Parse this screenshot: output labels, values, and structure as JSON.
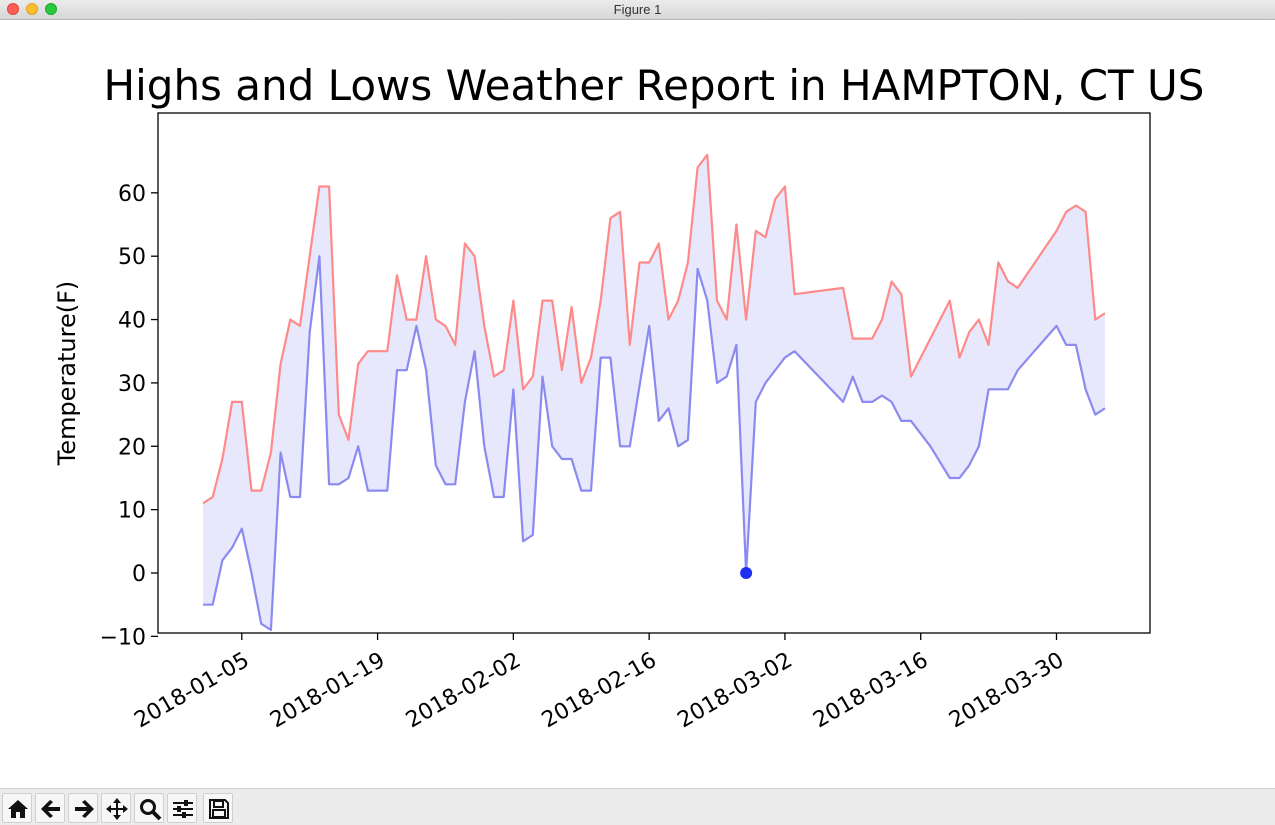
{
  "window": {
    "title": "Figure 1"
  },
  "chart_data": {
    "type": "line",
    "title": "Highs and Lows Weather Report in HAMPTON, CT US",
    "xlabel": "",
    "ylabel": "Temperature(F)",
    "xlim": [
      "2018-01-01",
      "2018-04-05"
    ],
    "ylim": [
      -12.3,
      70.0
    ],
    "x_ticks": [
      "2018-01-05",
      "2018-01-19",
      "2018-02-02",
      "2018-02-16",
      "2018-03-02",
      "2018-03-16",
      "2018-03-30"
    ],
    "y_ticks": [
      -10,
      0,
      10,
      20,
      30,
      40,
      50,
      60
    ],
    "grid": false,
    "fill_between": true,
    "colors": {
      "high": "#ff8a8a",
      "low": "#8a8af0",
      "fill": "#e8e8fc",
      "marker": "#1f2ff0"
    },
    "series": [
      {
        "key": "high",
        "points": [
          [
            "2018-01-01",
            11
          ],
          [
            "2018-01-02",
            12
          ],
          [
            "2018-01-03",
            18
          ],
          [
            "2018-01-04",
            27
          ],
          [
            "2018-01-05",
            27
          ],
          [
            "2018-01-06",
            13
          ],
          [
            "2018-01-07",
            13
          ],
          [
            "2018-01-08",
            19
          ],
          [
            "2018-01-09",
            33
          ],
          [
            "2018-01-10",
            40
          ],
          [
            "2018-01-11",
            39
          ],
          [
            "2018-01-12",
            50
          ],
          [
            "2018-01-13",
            61
          ],
          [
            "2018-01-14",
            61
          ],
          [
            "2018-01-15",
            25
          ],
          [
            "2018-01-16",
            21
          ],
          [
            "2018-01-17",
            33
          ],
          [
            "2018-01-18",
            35
          ],
          [
            "2018-01-19",
            35
          ],
          [
            "2018-01-20",
            35
          ],
          [
            "2018-01-21",
            47
          ],
          [
            "2018-01-22",
            40
          ],
          [
            "2018-01-23",
            40
          ],
          [
            "2018-01-24",
            50
          ],
          [
            "2018-01-25",
            40
          ],
          [
            "2018-01-26",
            39
          ],
          [
            "2018-01-27",
            36
          ],
          [
            "2018-01-28",
            52
          ],
          [
            "2018-01-29",
            50
          ],
          [
            "2018-01-30",
            39
          ],
          [
            "2018-01-31",
            31
          ],
          [
            "2018-02-01",
            32
          ],
          [
            "2018-02-02",
            43
          ],
          [
            "2018-02-03",
            29
          ],
          [
            "2018-02-04",
            31
          ],
          [
            "2018-02-05",
            43
          ],
          [
            "2018-02-06",
            43
          ],
          [
            "2018-02-07",
            32
          ],
          [
            "2018-02-08",
            42
          ],
          [
            "2018-02-09",
            30
          ],
          [
            "2018-02-10",
            34
          ],
          [
            "2018-02-11",
            43
          ],
          [
            "2018-02-12",
            56
          ],
          [
            "2018-02-13",
            57
          ],
          [
            "2018-02-14",
            36
          ],
          [
            "2018-02-15",
            49
          ],
          [
            "2018-02-16",
            49
          ],
          [
            "2018-02-17",
            52
          ],
          [
            "2018-02-18",
            40
          ],
          [
            "2018-02-19",
            43
          ],
          [
            "2018-02-20",
            49
          ],
          [
            "2018-02-21",
            64
          ],
          [
            "2018-02-22",
            66
          ],
          [
            "2018-02-23",
            43
          ],
          [
            "2018-02-24",
            40
          ],
          [
            "2018-02-25",
            55
          ],
          [
            "2018-02-26",
            40
          ],
          [
            "2018-02-27",
            54
          ],
          [
            "2018-02-28",
            53
          ],
          [
            "2018-03-01",
            59
          ],
          [
            "2018-03-02",
            61
          ],
          [
            "2018-03-03",
            44
          ],
          [
            "2018-03-08",
            45
          ],
          [
            "2018-03-09",
            37
          ],
          [
            "2018-03-10",
            37
          ],
          [
            "2018-03-11",
            37
          ],
          [
            "2018-03-12",
            40
          ],
          [
            "2018-03-13",
            46
          ],
          [
            "2018-03-14",
            44
          ],
          [
            "2018-03-15",
            31
          ],
          [
            "2018-03-17",
            37
          ],
          [
            "2018-03-18",
            40
          ],
          [
            "2018-03-19",
            43
          ],
          [
            "2018-03-20",
            34
          ],
          [
            "2018-03-21",
            38
          ],
          [
            "2018-03-22",
            40
          ],
          [
            "2018-03-23",
            36
          ],
          [
            "2018-03-24",
            49
          ],
          [
            "2018-03-25",
            46
          ],
          [
            "2018-03-26",
            45
          ],
          [
            "2018-03-30",
            54
          ],
          [
            "2018-03-31",
            57
          ],
          [
            "2018-04-01",
            58
          ],
          [
            "2018-04-02",
            57
          ],
          [
            "2018-04-03",
            40
          ],
          [
            "2018-04-04",
            41
          ]
        ]
      },
      {
        "key": "low",
        "points": [
          [
            "2018-01-01",
            -5
          ],
          [
            "2018-01-02",
            -5
          ],
          [
            "2018-01-03",
            2
          ],
          [
            "2018-01-04",
            4
          ],
          [
            "2018-01-05",
            7
          ],
          [
            "2018-01-06",
            0
          ],
          [
            "2018-01-07",
            -8
          ],
          [
            "2018-01-08",
            -9
          ],
          [
            "2018-01-09",
            19
          ],
          [
            "2018-01-10",
            12
          ],
          [
            "2018-01-11",
            12
          ],
          [
            "2018-01-12",
            38
          ],
          [
            "2018-01-13",
            50
          ],
          [
            "2018-01-14",
            14
          ],
          [
            "2018-01-15",
            14
          ],
          [
            "2018-01-16",
            15
          ],
          [
            "2018-01-17",
            20
          ],
          [
            "2018-01-18",
            13
          ],
          [
            "2018-01-19",
            13
          ],
          [
            "2018-01-20",
            13
          ],
          [
            "2018-01-21",
            32
          ],
          [
            "2018-01-22",
            32
          ],
          [
            "2018-01-23",
            39
          ],
          [
            "2018-01-24",
            32
          ],
          [
            "2018-01-25",
            17
          ],
          [
            "2018-01-26",
            14
          ],
          [
            "2018-01-27",
            14
          ],
          [
            "2018-01-28",
            27
          ],
          [
            "2018-01-29",
            35
          ],
          [
            "2018-01-30",
            20
          ],
          [
            "2018-01-31",
            12
          ],
          [
            "2018-02-01",
            12
          ],
          [
            "2018-02-02",
            29
          ],
          [
            "2018-02-03",
            5
          ],
          [
            "2018-02-04",
            6
          ],
          [
            "2018-02-05",
            31
          ],
          [
            "2018-02-06",
            20
          ],
          [
            "2018-02-07",
            18
          ],
          [
            "2018-02-08",
            18
          ],
          [
            "2018-02-09",
            13
          ],
          [
            "2018-02-10",
            13
          ],
          [
            "2018-02-11",
            34
          ],
          [
            "2018-02-12",
            34
          ],
          [
            "2018-02-13",
            20
          ],
          [
            "2018-02-14",
            20
          ],
          [
            "2018-02-16",
            39
          ],
          [
            "2018-02-17",
            24
          ],
          [
            "2018-02-18",
            26
          ],
          [
            "2018-02-19",
            20
          ],
          [
            "2018-02-20",
            21
          ],
          [
            "2018-02-21",
            48
          ],
          [
            "2018-02-22",
            43
          ],
          [
            "2018-02-23",
            30
          ],
          [
            "2018-02-24",
            31
          ],
          [
            "2018-02-25",
            36
          ],
          [
            "2018-02-26",
            0
          ],
          [
            "2018-02-27",
            27
          ],
          [
            "2018-02-28",
            30
          ],
          [
            "2018-03-02",
            34
          ],
          [
            "2018-03-03",
            35
          ],
          [
            "2018-03-08",
            27
          ],
          [
            "2018-03-09",
            31
          ],
          [
            "2018-03-10",
            27
          ],
          [
            "2018-03-11",
            27
          ],
          [
            "2018-03-12",
            28
          ],
          [
            "2018-03-13",
            27
          ],
          [
            "2018-03-14",
            24
          ],
          [
            "2018-03-15",
            24
          ],
          [
            "2018-03-17",
            20
          ],
          [
            "2018-03-19",
            15
          ],
          [
            "2018-03-20",
            15
          ],
          [
            "2018-03-21",
            17
          ],
          [
            "2018-03-22",
            20
          ],
          [
            "2018-03-23",
            29
          ],
          [
            "2018-03-25",
            29
          ],
          [
            "2018-03-26",
            32
          ],
          [
            "2018-03-30",
            39
          ],
          [
            "2018-03-31",
            36
          ],
          [
            "2018-04-01",
            36
          ],
          [
            "2018-04-02",
            29
          ],
          [
            "2018-04-03",
            25
          ],
          [
            "2018-04-04",
            26
          ]
        ]
      }
    ],
    "highlight_point": {
      "x": "2018-02-26",
      "y": 0
    }
  },
  "toolbar": {
    "buttons": [
      {
        "icon": "home-icon"
      },
      {
        "icon": "back-arrow-icon"
      },
      {
        "icon": "forward-arrow-icon"
      },
      {
        "icon": "pan-icon"
      },
      {
        "icon": "zoom-icon"
      },
      {
        "icon": "configure-subplots-icon"
      },
      {
        "icon": "save-icon"
      }
    ]
  }
}
